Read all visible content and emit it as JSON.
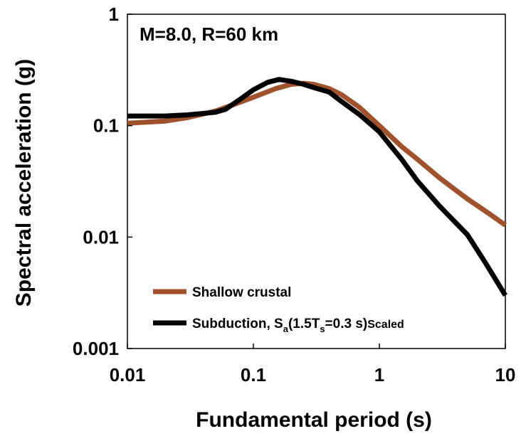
{
  "chart_data": {
    "type": "line",
    "title": "",
    "annotation": "M=8.0, R=60 km",
    "xlabel": "Fundamental period (s)",
    "ylabel": "Spectral acceleration (g)",
    "xscale": "log",
    "yscale": "log",
    "xlim": [
      0.01,
      10
    ],
    "ylim": [
      0.001,
      1
    ],
    "xticks": [
      "0.01",
      "0.1",
      "1",
      "10"
    ],
    "yticks": [
      "0.001",
      "0.01",
      "0.1",
      "1"
    ],
    "grid": false,
    "legend_position": "bottom-left",
    "legend": {
      "shallow": "Shallow crustal",
      "sub_prefix": "Subduction, S",
      "sub_a": "a",
      "sub_mid1": "(1.5T",
      "sub_s": "s",
      "sub_mid2": "=0.3 s)",
      "sub_scaled": "Scaled"
    },
    "series": [
      {
        "color": "#a0522d",
        "points": [
          [
            0.01,
            0.105
          ],
          [
            0.02,
            0.11
          ],
          [
            0.03,
            0.118
          ],
          [
            0.05,
            0.135
          ],
          [
            0.07,
            0.155
          ],
          [
            0.1,
            0.18
          ],
          [
            0.15,
            0.215
          ],
          [
            0.2,
            0.235
          ],
          [
            0.25,
            0.24
          ],
          [
            0.3,
            0.235
          ],
          [
            0.4,
            0.215
          ],
          [
            0.5,
            0.19
          ],
          [
            0.7,
            0.145
          ],
          [
            1,
            0.1
          ],
          [
            1.5,
            0.065
          ],
          [
            2,
            0.05
          ],
          [
            3,
            0.034
          ],
          [
            5,
            0.022
          ],
          [
            7,
            0.017
          ],
          [
            10,
            0.0128
          ]
        ]
      },
      {
        "color": "#000000",
        "points": [
          [
            0.01,
            0.122
          ],
          [
            0.02,
            0.122
          ],
          [
            0.03,
            0.125
          ],
          [
            0.05,
            0.132
          ],
          [
            0.06,
            0.14
          ],
          [
            0.08,
            0.175
          ],
          [
            0.1,
            0.21
          ],
          [
            0.13,
            0.245
          ],
          [
            0.16,
            0.26
          ],
          [
            0.2,
            0.25
          ],
          [
            0.25,
            0.235
          ],
          [
            0.3,
            0.22
          ],
          [
            0.4,
            0.2
          ],
          [
            0.5,
            0.165
          ],
          [
            0.7,
            0.125
          ],
          [
            1,
            0.088
          ],
          [
            1.5,
            0.05
          ],
          [
            2,
            0.032
          ],
          [
            3,
            0.019
          ],
          [
            5,
            0.0105
          ],
          [
            7,
            0.0058
          ],
          [
            10,
            0.003
          ]
        ]
      }
    ]
  }
}
